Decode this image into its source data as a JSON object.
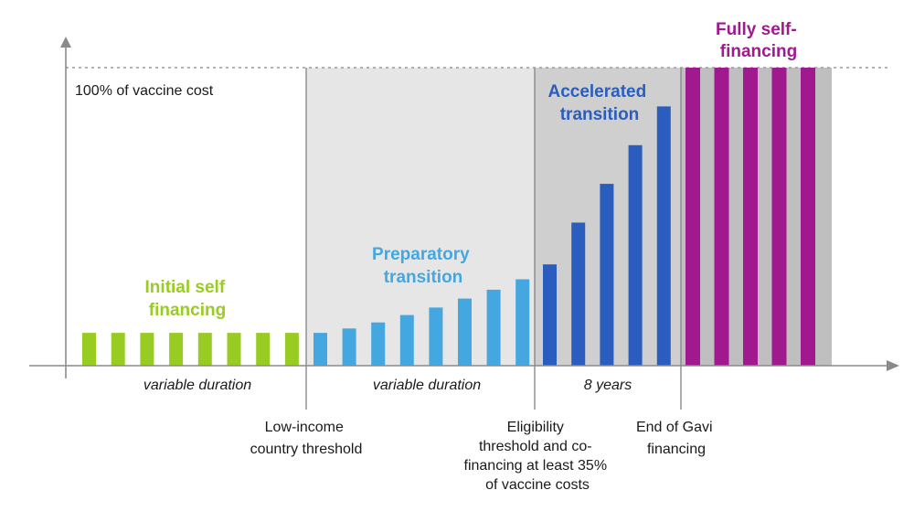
{
  "chart_data": {
    "type": "bar",
    "title": "",
    "xlabel": "",
    "ylabel": "",
    "ylim": [
      0,
      100
    ],
    "reference_line": {
      "value": 100,
      "label": "100% of vaccine cost"
    },
    "phases": [
      {
        "name": "Initial self financing",
        "label_lines": [
          "Initial self",
          "financing"
        ],
        "color": "#99cc22",
        "duration": "variable duration"
      },
      {
        "name": "Preparatory transition",
        "label_lines": [
          "Preparatory",
          "transition"
        ],
        "color": "#45a7e0",
        "duration": "variable duration"
      },
      {
        "name": "Accelerated transition",
        "label_lines": [
          "Accelerated",
          "transition"
        ],
        "color": "#2b5dbf",
        "duration": "8 years"
      },
      {
        "name": "Fully self-financing",
        "label_lines": [
          "Fully self-",
          "financing"
        ],
        "color": "#a0198f",
        "duration": ""
      }
    ],
    "series": [
      {
        "name": "Initial self financing",
        "phase": 0,
        "values": [
          11,
          11,
          11,
          11,
          11,
          11,
          11,
          11
        ]
      },
      {
        "name": "Preparatory transition",
        "phase": 1,
        "values": [
          11,
          12.5,
          14.5,
          17,
          19.5,
          22.5,
          25.5,
          29
        ]
      },
      {
        "name": "Accelerated transition",
        "phase": 2,
        "values": [
          34,
          48,
          61,
          74,
          87
        ]
      },
      {
        "name": "Fully self-financing",
        "phase": 3,
        "values": [
          100,
          100,
          100,
          100,
          100
        ]
      }
    ],
    "thresholds": [
      {
        "label_lines": [
          "Low-income",
          "country threshold"
        ]
      },
      {
        "label_lines": [
          "Eligibility",
          "threshold and co-",
          "financing at least 35%",
          "of vaccine costs"
        ]
      },
      {
        "label_lines": [
          "End of Gavi",
          "financing"
        ]
      }
    ]
  }
}
